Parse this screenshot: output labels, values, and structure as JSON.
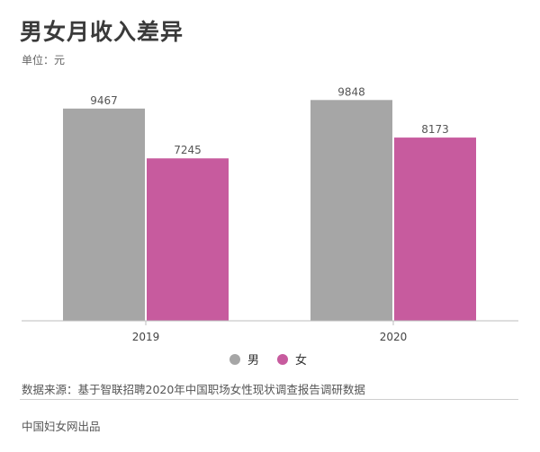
{
  "header": {
    "title": "男女月收入差异",
    "unit": "单位：元"
  },
  "footer": {
    "source": "数据来源：基于智联招聘2020年中国职场女性现状调查报告调研数据",
    "credit": "中国妇女网出品"
  },
  "colors": {
    "male": "#a6a6a6",
    "female": "#c75b9e"
  },
  "chart_data": {
    "type": "bar",
    "title": "男女月收入差异",
    "ylabel": "单位：元",
    "categories": [
      "2019",
      "2020"
    ],
    "series": [
      {
        "name": "男",
        "values": [
          9467,
          9848
        ]
      },
      {
        "name": "女",
        "values": [
          7245,
          8173
        ]
      }
    ],
    "ylim": [
      0,
      10000
    ],
    "grid": false,
    "legend": "bottom-center",
    "data_labels": true
  }
}
